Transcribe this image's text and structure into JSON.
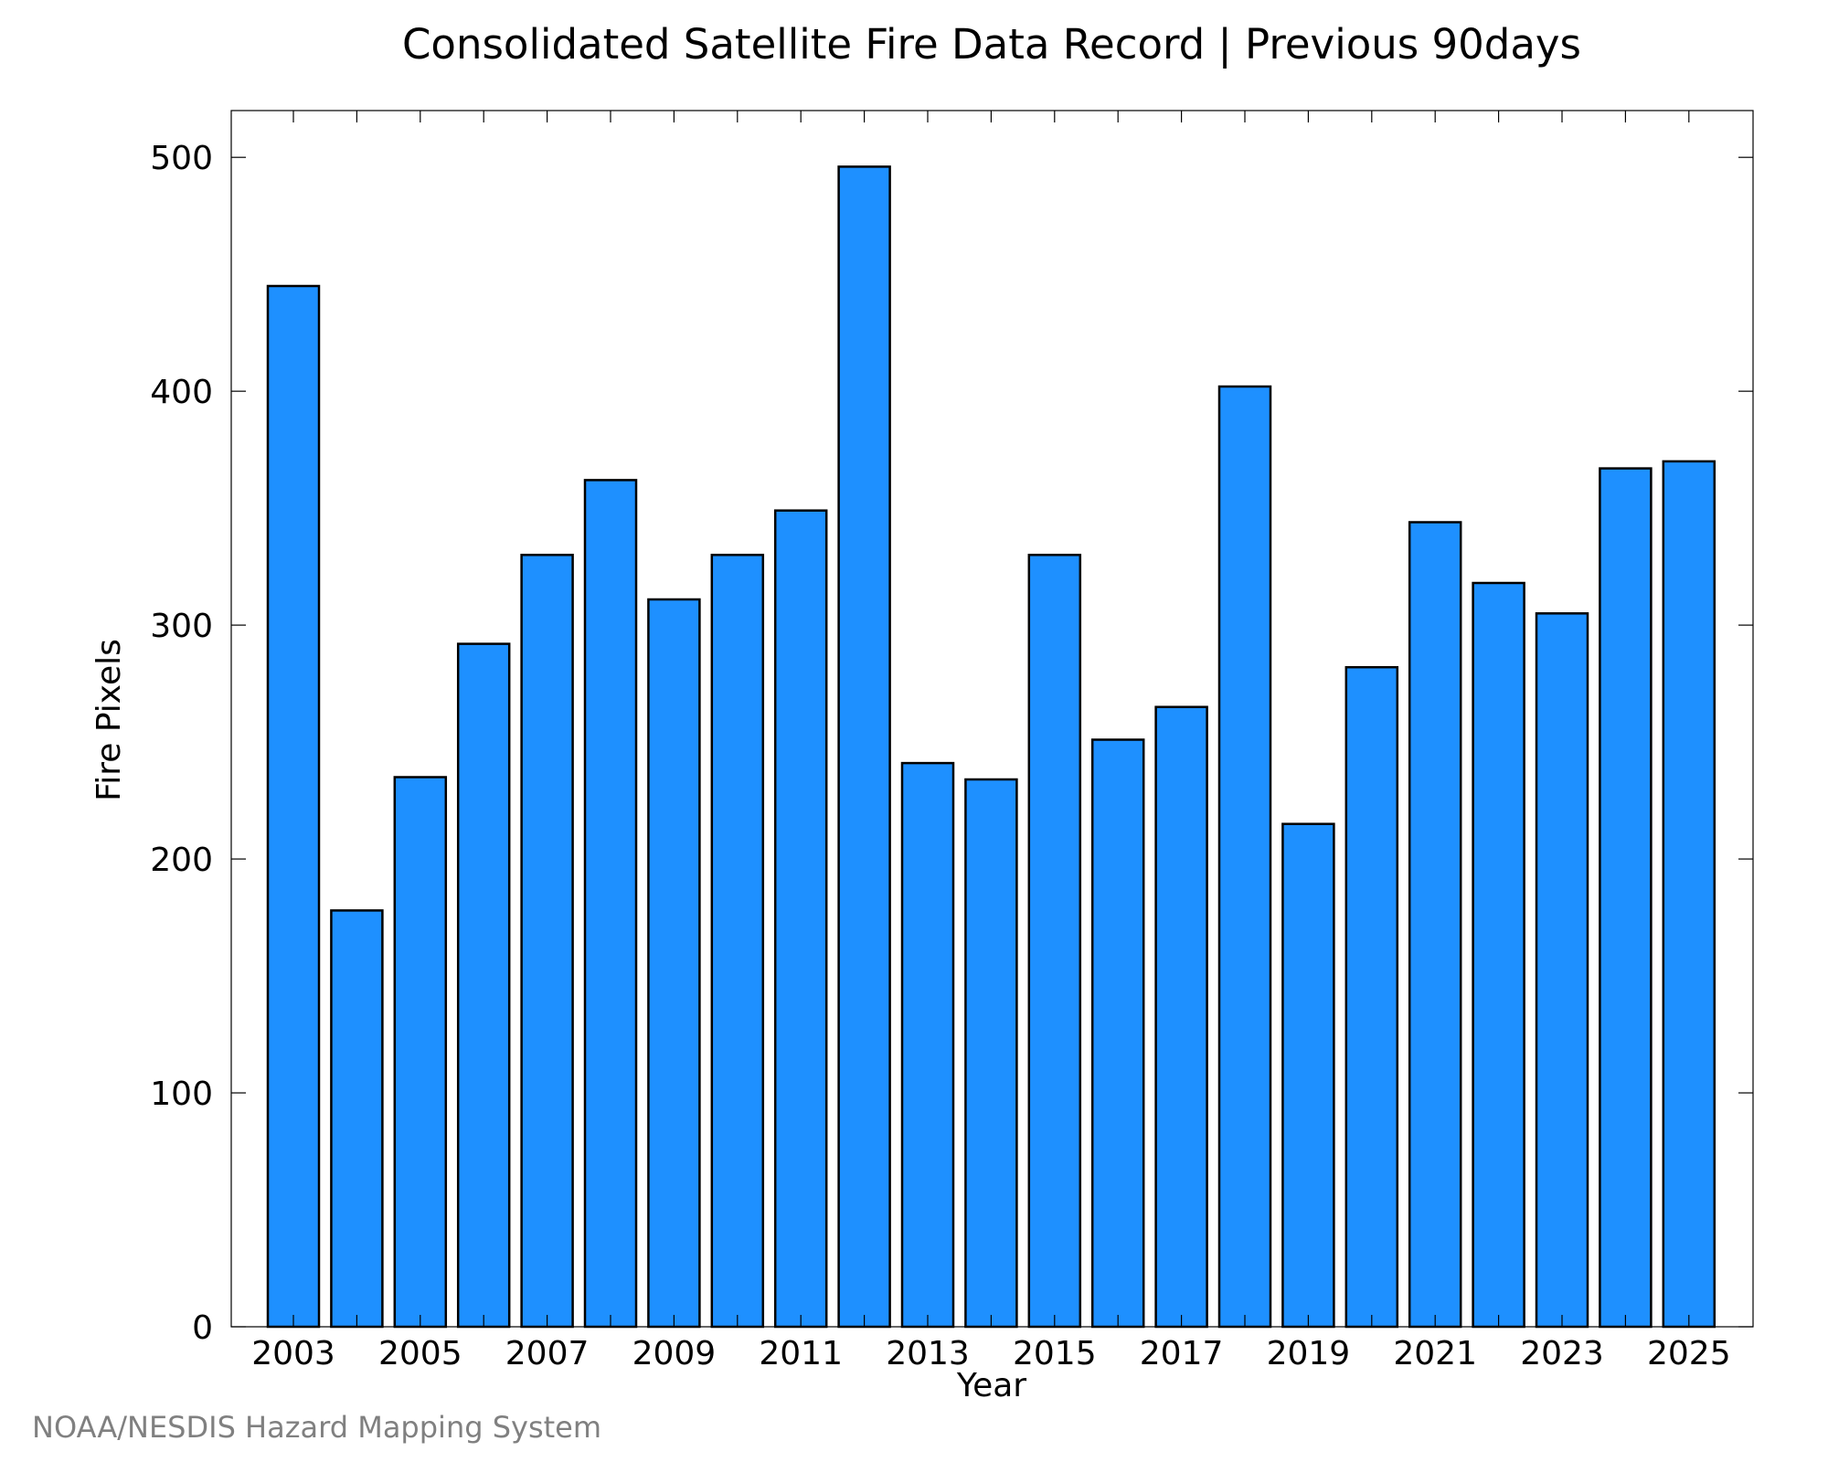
{
  "chart_data": {
    "type": "bar",
    "title": "Consolidated Satellite Fire Data Record | Previous 90days",
    "xlabel": "Year",
    "ylabel": "Fire Pixels",
    "footer": "NOAA/NESDIS Hazard Mapping System",
    "categories": [
      "2003",
      "2004",
      "2005",
      "2006",
      "2007",
      "2008",
      "2009",
      "2010",
      "2011",
      "2012",
      "2013",
      "2014",
      "2015",
      "2016",
      "2017",
      "2018",
      "2019",
      "2020",
      "2021",
      "2022",
      "2023",
      "2024",
      "2025"
    ],
    "values": [
      445,
      178,
      235,
      292,
      330,
      362,
      311,
      330,
      349,
      496,
      241,
      234,
      330,
      251,
      265,
      402,
      215,
      282,
      344,
      318,
      305,
      367,
      370
    ],
    "xticks": [
      "2003",
      "2005",
      "2007",
      "2009",
      "2011",
      "2013",
      "2015",
      "2017",
      "2019",
      "2021",
      "2023",
      "2025"
    ],
    "yticks": [
      "0",
      "100",
      "200",
      "300",
      "400",
      "500"
    ],
    "ylim": [
      0,
      520
    ],
    "grid": false,
    "legend": "none",
    "bar_color": "#1e90ff",
    "edge_color": "#000000",
    "footer_color": "#808080"
  }
}
